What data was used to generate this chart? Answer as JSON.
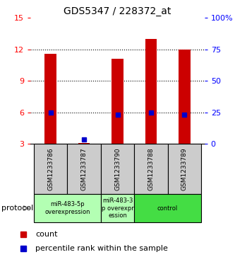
{
  "title": "GDS5347 / 228372_at",
  "samples": [
    "GSM1233786",
    "GSM1233787",
    "GSM1233790",
    "GSM1233788",
    "GSM1233789"
  ],
  "bar_values": [
    11.6,
    3.1,
    11.1,
    13.0,
    12.0
  ],
  "percentile_values": [
    25.0,
    3.5,
    23.0,
    25.0,
    23.0
  ],
  "bar_color": "#cc0000",
  "percentile_color": "#0000cc",
  "ylim_left": [
    3,
    15
  ],
  "ylim_right": [
    0,
    100
  ],
  "yticks_left": [
    3,
    6,
    9,
    12,
    15
  ],
  "ytick_labels_left": [
    "3",
    "6",
    "9",
    "12",
    "15"
  ],
  "yticks_right": [
    0,
    25,
    50,
    75,
    100
  ],
  "ytick_labels_right": [
    "0",
    "25",
    "50",
    "75",
    "100%"
  ],
  "grid_values": [
    6,
    9,
    12
  ],
  "protocols": [
    {
      "label": "miR-483-5p\noverexpression",
      "span": [
        0,
        2
      ],
      "color": "#b3ffb3"
    },
    {
      "label": "miR-483-3\np overexpr\nession",
      "span": [
        2,
        3
      ],
      "color": "#b3ffb3"
    },
    {
      "label": "control",
      "span": [
        3,
        5
      ],
      "color": "#44dd44"
    }
  ],
  "bar_width": 0.35,
  "baseline": 3,
  "legend_count_label": "count",
  "legend_percentile_label": "percentile rank within the sample",
  "protocol_label": "protocol",
  "sample_area_color": "#cccccc",
  "sample_area_border": "#000000",
  "bg_color": "#ffffff"
}
